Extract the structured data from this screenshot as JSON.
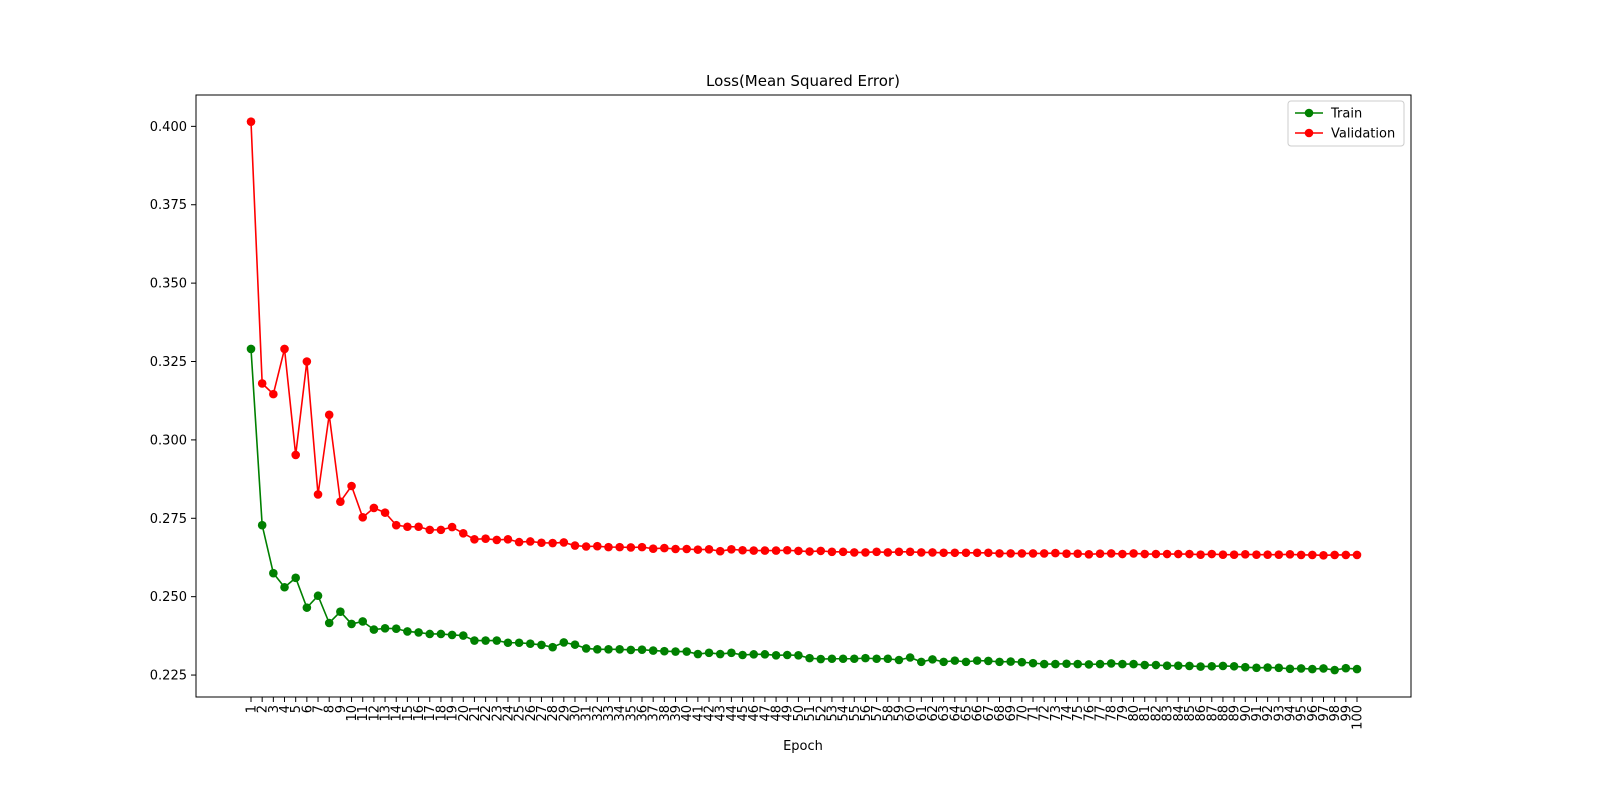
{
  "chart_data": {
    "type": "line",
    "title": "Loss(Mean Squared Error)",
    "xlabel": "Epoch",
    "ylabel": "",
    "ylim": [
      0.218,
      0.41
    ],
    "grid": false,
    "legend_position": "top-right",
    "x_tick_rotation": "vertical",
    "yticks": [
      "0.225",
      "0.250",
      "0.275",
      "0.300",
      "0.325",
      "0.350",
      "0.375",
      "0.400"
    ],
    "x": [
      1,
      2,
      3,
      4,
      5,
      6,
      7,
      8,
      9,
      10,
      11,
      12,
      13,
      14,
      15,
      16,
      17,
      18,
      19,
      20,
      21,
      22,
      23,
      24,
      25,
      26,
      27,
      28,
      29,
      30,
      31,
      32,
      33,
      34,
      35,
      36,
      37,
      38,
      39,
      40,
      41,
      42,
      43,
      44,
      45,
      46,
      47,
      48,
      49,
      50,
      51,
      52,
      53,
      54,
      55,
      56,
      57,
      58,
      59,
      60,
      61,
      62,
      63,
      64,
      65,
      66,
      67,
      68,
      69,
      70,
      71,
      72,
      73,
      74,
      75,
      76,
      77,
      78,
      79,
      80,
      81,
      82,
      83,
      84,
      85,
      86,
      87,
      88,
      89,
      90,
      91,
      92,
      93,
      94,
      95,
      96,
      97,
      98,
      99,
      100
    ],
    "series": [
      {
        "name": "Train",
        "color": "#008000",
        "values": [
          0.329,
          0.2728,
          0.2575,
          0.253,
          0.256,
          0.2465,
          0.2503,
          0.2416,
          0.2452,
          0.2413,
          0.2421,
          0.2395,
          0.2399,
          0.2398,
          0.2389,
          0.2386,
          0.2381,
          0.2381,
          0.2378,
          0.2376,
          0.236,
          0.236,
          0.236,
          0.2353,
          0.2353,
          0.235,
          0.2346,
          0.2339,
          0.2354,
          0.2347,
          0.2335,
          0.2332,
          0.2332,
          0.2332,
          0.233,
          0.2331,
          0.2328,
          0.2326,
          0.2325,
          0.2325,
          0.2317,
          0.2321,
          0.2317,
          0.2321,
          0.2314,
          0.2316,
          0.2316,
          0.2313,
          0.2314,
          0.2313,
          0.2304,
          0.2301,
          0.2302,
          0.2302,
          0.2302,
          0.2304,
          0.2302,
          0.2302,
          0.2298,
          0.2306,
          0.2292,
          0.23,
          0.2292,
          0.2296,
          0.2292,
          0.2296,
          0.2295,
          0.2292,
          0.2293,
          0.2291,
          0.2288,
          0.2285,
          0.2285,
          0.2286,
          0.2285,
          0.2284,
          0.2285,
          0.2287,
          0.2285,
          0.2285,
          0.2282,
          0.2282,
          0.228,
          0.228,
          0.2279,
          0.2277,
          0.2278,
          0.2279,
          0.2278,
          0.2275,
          0.2273,
          0.2274,
          0.2273,
          0.227,
          0.2271,
          0.2269,
          0.2271,
          0.2266,
          0.2272,
          0.2269
        ]
      },
      {
        "name": "Validation",
        "color": "#ff0000",
        "values": [
          0.4015,
          0.318,
          0.3146,
          0.329,
          0.2952,
          0.325,
          0.2826,
          0.308,
          0.2803,
          0.2853,
          0.2753,
          0.2783,
          0.2768,
          0.2728,
          0.2723,
          0.2723,
          0.2713,
          0.2713,
          0.2722,
          0.2702,
          0.2683,
          0.2685,
          0.2681,
          0.2683,
          0.2674,
          0.2676,
          0.2672,
          0.2671,
          0.2673,
          0.2663,
          0.266,
          0.2661,
          0.2658,
          0.2658,
          0.2657,
          0.2658,
          0.2653,
          0.2655,
          0.2652,
          0.2652,
          0.265,
          0.2651,
          0.2645,
          0.2651,
          0.2648,
          0.2647,
          0.2647,
          0.2647,
          0.2648,
          0.2646,
          0.2644,
          0.2646,
          0.2643,
          0.2643,
          0.2641,
          0.2641,
          0.2643,
          0.2641,
          0.2643,
          0.2643,
          0.2641,
          0.2641,
          0.264,
          0.264,
          0.264,
          0.264,
          0.264,
          0.2638,
          0.2638,
          0.2638,
          0.2638,
          0.2638,
          0.2639,
          0.2637,
          0.2637,
          0.2635,
          0.2637,
          0.2638,
          0.2636,
          0.2638,
          0.2636,
          0.2636,
          0.2636,
          0.2636,
          0.2636,
          0.2634,
          0.2636,
          0.2634,
          0.2634,
          0.2635,
          0.2634,
          0.2634,
          0.2634,
          0.2635,
          0.2633,
          0.2633,
          0.2632,
          0.2633,
          0.2633,
          0.2633
        ]
      }
    ]
  }
}
